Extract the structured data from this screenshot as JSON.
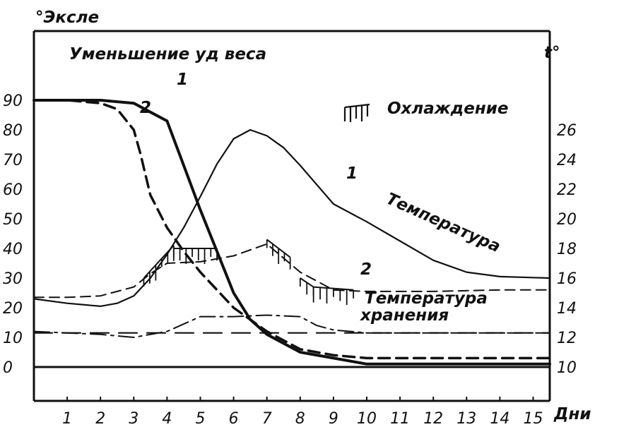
{
  "chart_data": {
    "type": "line",
    "left_axis_label": "°Эксле",
    "right_axis_label": "t°",
    "x_axis_unit": "Дни",
    "x_ticks": [
      "1",
      "2",
      "3",
      "4",
      "5",
      "6",
      "7",
      "8",
      "9",
      "10",
      "11",
      "12",
      "13",
      "14",
      "15"
    ],
    "x_range": [
      0,
      15.5
    ],
    "left_ticks": [
      "90",
      "80",
      "70",
      "60",
      "50",
      "40",
      "30",
      "20",
      "10",
      "0"
    ],
    "left_range": [
      -10,
      100
    ],
    "right_ticks": [
      "26",
      "24",
      "22",
      "20",
      "18",
      "16",
      "14",
      "12",
      "10"
    ],
    "right_range": [
      8,
      28
    ],
    "annotations": {
      "weight_loss": "Уменьшение уд веса",
      "cooling": "Охлаждение",
      "temperature": "Температура",
      "storage_temperature_line1": "Температура",
      "storage_temperature_line2": "хранения",
      "curve_1_mark": "1",
      "curve_2_mark": "2",
      "temp_1_mark": "1",
      "temp_2_mark": "2"
    },
    "series": [
      {
        "key": "weight_loss_1",
        "axis": "left",
        "style": "solid-thick",
        "x": [
          0,
          1,
          2,
          3,
          3.5,
          4,
          4.5,
          5,
          5.5,
          6,
          6.5,
          7,
          8,
          9,
          10,
          11,
          12,
          13,
          14,
          15.5
        ],
        "y": [
          90,
          90,
          90,
          89,
          86,
          83,
          68,
          53,
          39,
          25,
          16,
          11,
          5,
          3,
          1,
          1,
          1,
          1,
          1,
          1
        ]
      },
      {
        "key": "weight_loss_2",
        "axis": "left",
        "style": "dashed-thick",
        "x": [
          0,
          1,
          2,
          2.5,
          3,
          3.2,
          3.5,
          4,
          4.5,
          5,
          5.5,
          6,
          6.5,
          7,
          8,
          9,
          10,
          11,
          12,
          13,
          14,
          15.5
        ],
        "y": [
          90,
          90,
          89,
          87,
          80,
          72,
          58,
          47,
          39,
          32,
          26,
          20,
          16,
          12,
          6,
          4,
          3,
          3,
          3,
          3,
          3,
          3
        ]
      },
      {
        "key": "temperature_1",
        "axis": "right",
        "style": "solid-thin",
        "x": [
          0,
          1,
          2,
          2.5,
          3,
          3.5,
          4,
          4.5,
          5,
          5.5,
          6,
          6.5,
          7,
          7.5,
          8,
          9,
          10,
          11,
          12,
          13,
          14,
          15.5
        ],
        "y": [
          14.6,
          14.3,
          14.1,
          14.3,
          14.8,
          16.0,
          17.6,
          19.4,
          21.5,
          23.7,
          25.4,
          26.0,
          25.6,
          24.8,
          23.6,
          21.0,
          19.8,
          18.5,
          17.2,
          16.4,
          16.1,
          16.0
        ]
      },
      {
        "key": "temperature_2",
        "axis": "right",
        "style": "dashed-thin",
        "x": [
          0,
          1,
          2,
          3,
          3.5,
          4,
          5,
          6,
          7,
          8,
          9,
          10,
          12,
          14,
          15.5
        ],
        "y": [
          14.7,
          14.7,
          14.8,
          15.4,
          16.3,
          17.0,
          17.1,
          17.5,
          18.3,
          16.4,
          15.2,
          15.1,
          15.1,
          15.2,
          15.2
        ]
      },
      {
        "key": "storage_temperature",
        "axis": "right",
        "style": "dashdot",
        "x": [
          0,
          1,
          2,
          3,
          4,
          5,
          6,
          7,
          8,
          8.5,
          9,
          10,
          15.5
        ],
        "y": [
          12.4,
          12.3,
          12.2,
          12.0,
          12.4,
          13.4,
          13.4,
          13.5,
          13.4,
          12.8,
          12.5,
          12.3,
          12.3
        ]
      },
      {
        "key": "storage_reference",
        "axis": "right",
        "style": "long-dash",
        "x": [
          0,
          15.5
        ],
        "y": [
          12.3,
          12.3
        ]
      }
    ],
    "cooling_segments": [
      {
        "x": [
          3.3,
          4.2
        ],
        "y_left": [
          30,
          41
        ],
        "axis": "left"
      },
      {
        "x": [
          4.2,
          5.5
        ],
        "y_left": [
          40,
          40
        ],
        "axis": "left"
      },
      {
        "x": [
          7.0,
          7.7
        ],
        "y_left": [
          43,
          37
        ],
        "axis": "left"
      },
      {
        "x": [
          8.0,
          8.4
        ],
        "y_left": [
          30,
          27
        ],
        "axis": "left"
      },
      {
        "x": [
          8.4,
          9.6
        ],
        "y_left": [
          27,
          26
        ],
        "axis": "left"
      }
    ]
  }
}
